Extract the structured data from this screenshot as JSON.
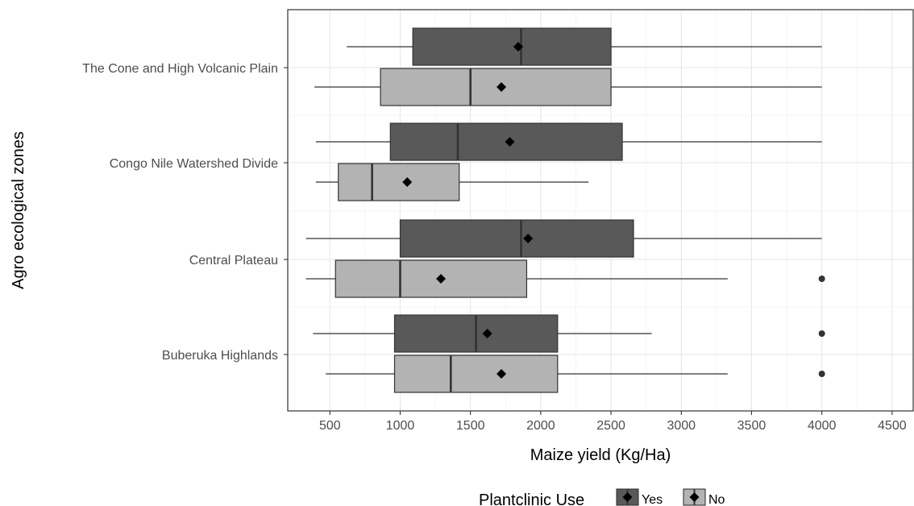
{
  "chart_data": {
    "type": "boxplot",
    "orientation": "horizontal",
    "xlabel": "Maize yield (Kg/Ha)",
    "ylabel": "Agro ecological zones",
    "xlim": [
      200,
      4650
    ],
    "xticks": [
      500,
      1000,
      1500,
      2000,
      2500,
      3000,
      3500,
      4000,
      4500
    ],
    "grid": true,
    "legend": {
      "title": "Plantclinic Use",
      "position": "bottom",
      "items": [
        {
          "label": "Yes",
          "color": "#595959"
        },
        {
          "label": "No",
          "color": "#b3b3b3"
        }
      ]
    },
    "categories": [
      "The Cone and High Volcanic Plain",
      "Congo Nile Watershed Divide",
      "Central Plateau",
      "Buberuka Highlands"
    ],
    "series": [
      {
        "name": "Yes",
        "color": "#595959",
        "boxes": [
          {
            "min": 620,
            "q1": 1090,
            "median": 1860,
            "q3": 2500,
            "max": 4000,
            "mean": 1840,
            "outliers": []
          },
          {
            "min": 400,
            "q1": 930,
            "median": 1410,
            "q3": 2580,
            "max": 4000,
            "mean": 1780,
            "outliers": []
          },
          {
            "min": 330,
            "q1": 1000,
            "median": 1860,
            "q3": 2660,
            "max": 4000,
            "mean": 1910,
            "outliers": []
          },
          {
            "min": 380,
            "q1": 960,
            "median": 1540,
            "q3": 2120,
            "max": 2790,
            "mean": 1620,
            "outliers": [
              4000
            ]
          }
        ]
      },
      {
        "name": "No",
        "color": "#b3b3b3",
        "boxes": [
          {
            "min": 390,
            "q1": 860,
            "median": 1500,
            "q3": 2500,
            "max": 4000,
            "mean": 1720,
            "outliers": []
          },
          {
            "min": 400,
            "q1": 560,
            "median": 800,
            "q3": 1420,
            "max": 2340,
            "mean": 1050,
            "outliers": []
          },
          {
            "min": 330,
            "q1": 540,
            "median": 1000,
            "q3": 1900,
            "max": 3330,
            "mean": 1290,
            "outliers": [
              4000
            ]
          },
          {
            "min": 470,
            "q1": 960,
            "median": 1360,
            "q3": 2120,
            "max": 3330,
            "mean": 1720,
            "outliers": [
              4000
            ]
          }
        ]
      }
    ]
  }
}
